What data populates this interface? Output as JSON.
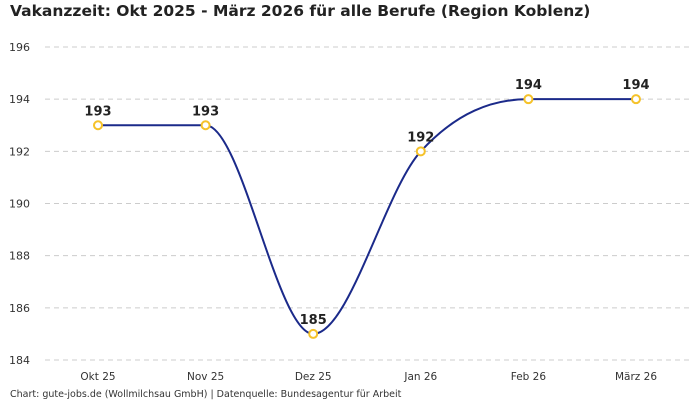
{
  "chart_data": {
    "type": "line",
    "title": "Vakanzzeit: Okt 2025 - März 2026 für alle Berufe (Region Koblenz)",
    "categories": [
      "Okt 25",
      "Nov 25",
      "Dez 25",
      "Jan 26",
      "Feb 26",
      "März 26"
    ],
    "values": [
      193,
      193,
      185,
      192,
      194,
      194
    ],
    "data_labels": [
      "193",
      "193",
      "185",
      "192",
      "194",
      "194"
    ],
    "ylim": [
      184,
      196
    ],
    "yticks": [
      "184",
      "186",
      "188",
      "190",
      "192",
      "194",
      "196"
    ],
    "xlabel": "",
    "ylabel": "",
    "grid": true,
    "curve": "smooth",
    "colors": {
      "line": "#1b2a8a",
      "marker": "#f5c22a",
      "grid": "#cccccc"
    },
    "footer": "Chart: gute-jobs.de (Wollmilchsau GmbH) | Datenquelle: Bundesagentur für Arbeit"
  }
}
